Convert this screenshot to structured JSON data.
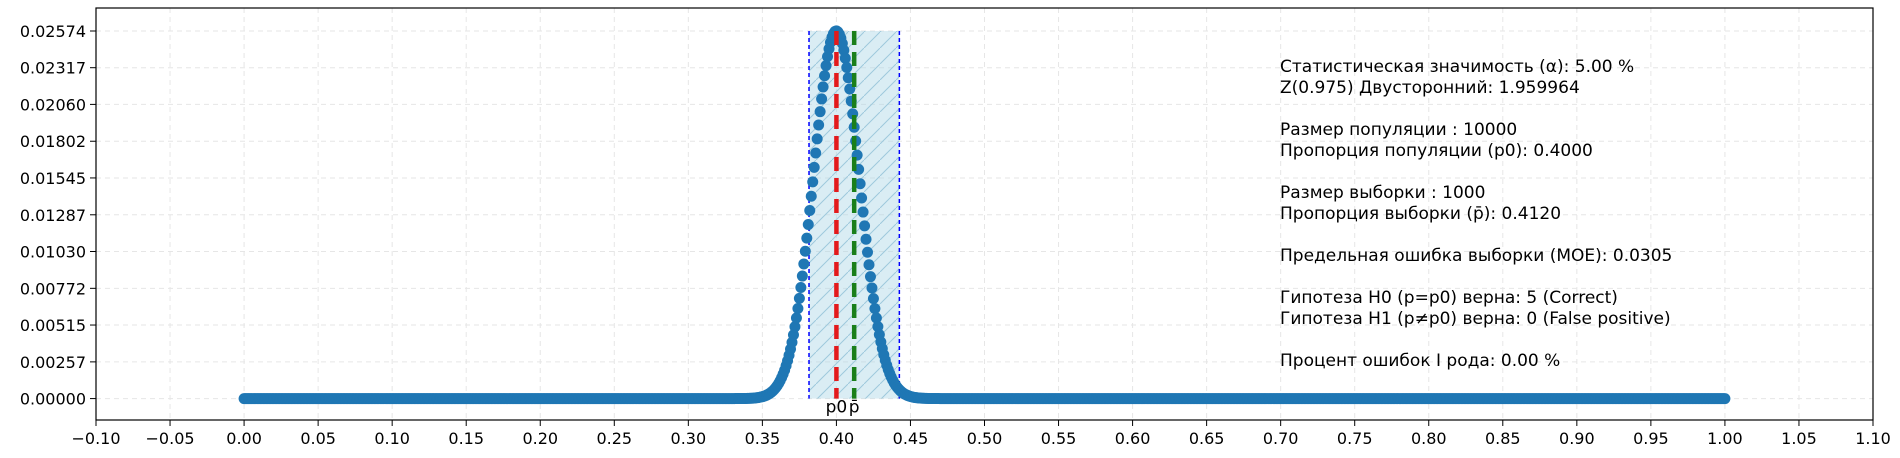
{
  "chart_data": {
    "type": "scatter",
    "title": "",
    "xlabel": "",
    "ylabel": "",
    "xlim": [
      -0.1,
      1.1
    ],
    "ylim": [
      -0.0015,
      0.02735
    ],
    "x_ticks": [
      "−0.10",
      "−0.05",
      "0.00",
      "0.05",
      "0.10",
      "0.15",
      "0.20",
      "0.25",
      "0.30",
      "0.35",
      "0.40",
      "0.45",
      "0.50",
      "0.55",
      "0.60",
      "0.65",
      "0.70",
      "0.75",
      "0.80",
      "0.85",
      "0.90",
      "0.95",
      "1.00",
      "1.05",
      "1.10"
    ],
    "x_tick_values": [
      -0.1,
      -0.05,
      0,
      0.05,
      0.1,
      0.15,
      0.2,
      0.25,
      0.3,
      0.35,
      0.4,
      0.45,
      0.5,
      0.55,
      0.6,
      0.65,
      0.7,
      0.75,
      0.8,
      0.85,
      0.9,
      0.95,
      1.0,
      1.05,
      1.1
    ],
    "y_ticks": [
      "0.00000",
      "0.00257",
      "0.00515",
      "0.00772",
      "0.01030",
      "0.01287",
      "0.01545",
      "0.01802",
      "0.02060",
      "0.02317",
      "0.02574"
    ],
    "y_tick_values": [
      0,
      0.00257,
      0.00515,
      0.00772,
      0.0103,
      0.01287,
      0.01545,
      0.01802,
      0.0206,
      0.02317,
      0.02574
    ],
    "grid": true,
    "series": [
      {
        "color": "#1f77b4",
        "distribution": {
          "kind": "binomial-pmf",
          "n": 1000,
          "p": 0.4
        }
      }
    ],
    "reference_lines": [
      {
        "x": 0.4,
        "label": "p0",
        "color": "#e31a1c",
        "style": "dashed"
      },
      {
        "x": 0.412,
        "label": "p̄",
        "color": "#1a7f1a",
        "style": "dashed"
      }
    ],
    "confidence_interval": {
      "low": 0.3815,
      "high": 0.4425,
      "fill": "#add8e6",
      "edge": "#0000ff"
    },
    "annotations": [
      "Статистическая значимость (α): 5.00 %",
      "Z(0.975) Двусторонний: 1.959964",
      "",
      "Размер популяции : 10000",
      "Пропорция популяции (p0): 0.4000",
      "",
      "Размер выборки : 1000",
      "Пропорция выборки (p̄): 0.4120",
      "",
      "Предельная ошибка выборки (MOE): 0.0305",
      "",
      "Гипотеза H0 (p=p0) верна: 5 (Correct)",
      "Гипотеза H1 (p≠p0) верна: 0 (False positive)",
      "",
      "Процент ошибок I рода: 0.00 %"
    ]
  }
}
